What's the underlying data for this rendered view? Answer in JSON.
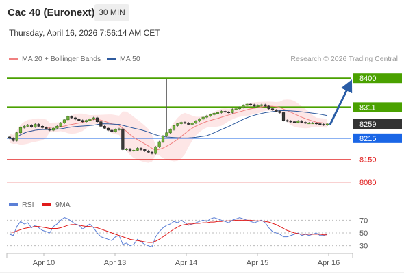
{
  "header": {
    "title": "Cac 40 (Euronext)",
    "interval": "30 MIN",
    "datetime": "Thursday, April 16, 2026 7:56:14 AM CET"
  },
  "price_panel": {
    "legend": [
      {
        "label": "MA 20 + Bollinger Bands",
        "color": "#f08080"
      },
      {
        "label": "MA 50",
        "color": "#2f5b9e"
      }
    ],
    "credit": "Research © 2026 Trading Central",
    "levels": [
      {
        "value": "8400",
        "kind": "resistance",
        "color": "#4aa100",
        "labelled_box": true
      },
      {
        "value": "8311",
        "kind": "resistance",
        "color": "#4aa100",
        "labelled_box": true
      },
      {
        "value": "8259",
        "kind": "last-price",
        "color": "#333333",
        "labelled_box": true
      },
      {
        "value": "8215",
        "kind": "pivot",
        "color": "#1a66e6",
        "labelled_box": true
      },
      {
        "value": "8150",
        "kind": "support",
        "color": "#e01b1b",
        "labelled_box": false
      },
      {
        "value": "8080",
        "kind": "support",
        "color": "#e01b1b",
        "labelled_box": false
      }
    ]
  },
  "rsi_panel": {
    "legend": [
      {
        "label": "RSI",
        "color": "#5b7fd6"
      },
      {
        "label": "9MA",
        "color": "#e01b1b"
      }
    ],
    "levels": [
      "70",
      "50",
      "30"
    ]
  },
  "x_axis": {
    "labels": [
      "Apr 10",
      "Apr 13",
      "Apr 14",
      "Apr 15",
      "Apr 16"
    ]
  },
  "chart_data": {
    "type": "candlestick",
    "y_range": [
      8050,
      8430
    ],
    "rsi_range": [
      20,
      80
    ],
    "closes": [
      8215,
      8208,
      8232,
      8248,
      8252,
      8256,
      8250,
      8258,
      8252,
      8248,
      8244,
      8240,
      8246,
      8252,
      8262,
      8272,
      8282,
      8278,
      8274,
      8270,
      8266,
      8270,
      8274,
      8278,
      8266,
      8252,
      8246,
      8240,
      8236,
      8242,
      8244,
      8180,
      8182,
      8176,
      8178,
      8184,
      8180,
      8176,
      8172,
      8168,
      8188,
      8204,
      8222,
      8232,
      8242,
      8254,
      8260,
      8264,
      8262,
      8258,
      8262,
      8268,
      8274,
      8280,
      8284,
      8288,
      8292,
      8294,
      8298,
      8296,
      8294,
      8304,
      8306,
      8310,
      8316,
      8320,
      8318,
      8314,
      8316,
      8318,
      8314,
      8306,
      8302,
      8298,
      8294,
      8270,
      8268,
      8266,
      8264,
      8268,
      8264,
      8262,
      8262,
      8262,
      8260,
      8258,
      8256,
      8259
    ],
    "spike": {
      "index": 43,
      "high": 8398
    },
    "rsi": [
      48,
      46,
      60,
      68,
      64,
      66,
      58,
      62,
      58,
      54,
      52,
      50,
      60,
      64,
      70,
      74,
      72,
      68,
      64,
      62,
      56,
      60,
      64,
      58,
      50,
      44,
      42,
      40,
      38,
      44,
      46,
      32,
      34,
      30,
      32,
      40,
      36,
      32,
      30,
      28,
      44,
      52,
      58,
      62,
      64,
      68,
      66,
      70,
      66,
      62,
      64,
      66,
      68,
      70,
      68,
      72,
      74,
      72,
      70,
      68,
      66,
      70,
      72,
      74,
      72,
      70,
      68,
      66,
      68,
      70,
      66,
      58,
      52,
      50,
      48,
      44,
      44,
      46,
      48,
      50,
      46,
      48,
      46,
      48,
      50,
      46,
      46,
      48
    ],
    "rsi_ma": [
      52,
      51,
      53,
      55,
      57,
      58,
      59,
      60,
      60,
      59,
      58,
      57,
      57,
      57,
      58,
      60,
      62,
      63,
      63,
      62,
      61,
      60,
      60,
      59,
      58,
      56,
      54,
      52,
      50,
      48,
      46,
      44,
      42,
      40,
      39,
      38,
      37,
      36,
      35,
      35,
      37,
      40,
      44,
      48,
      52,
      56,
      59,
      62,
      63,
      64,
      64,
      65,
      65,
      66,
      66,
      67,
      67,
      68,
      68,
      69,
      69,
      69,
      70,
      70,
      70,
      70,
      70,
      69,
      69,
      69,
      68,
      67,
      65,
      63,
      60,
      57,
      54,
      52,
      50,
      49,
      48,
      48,
      48,
      48,
      48,
      48,
      47,
      47
    ],
    "forecast": {
      "from": 8259,
      "to": 8400
    }
  }
}
